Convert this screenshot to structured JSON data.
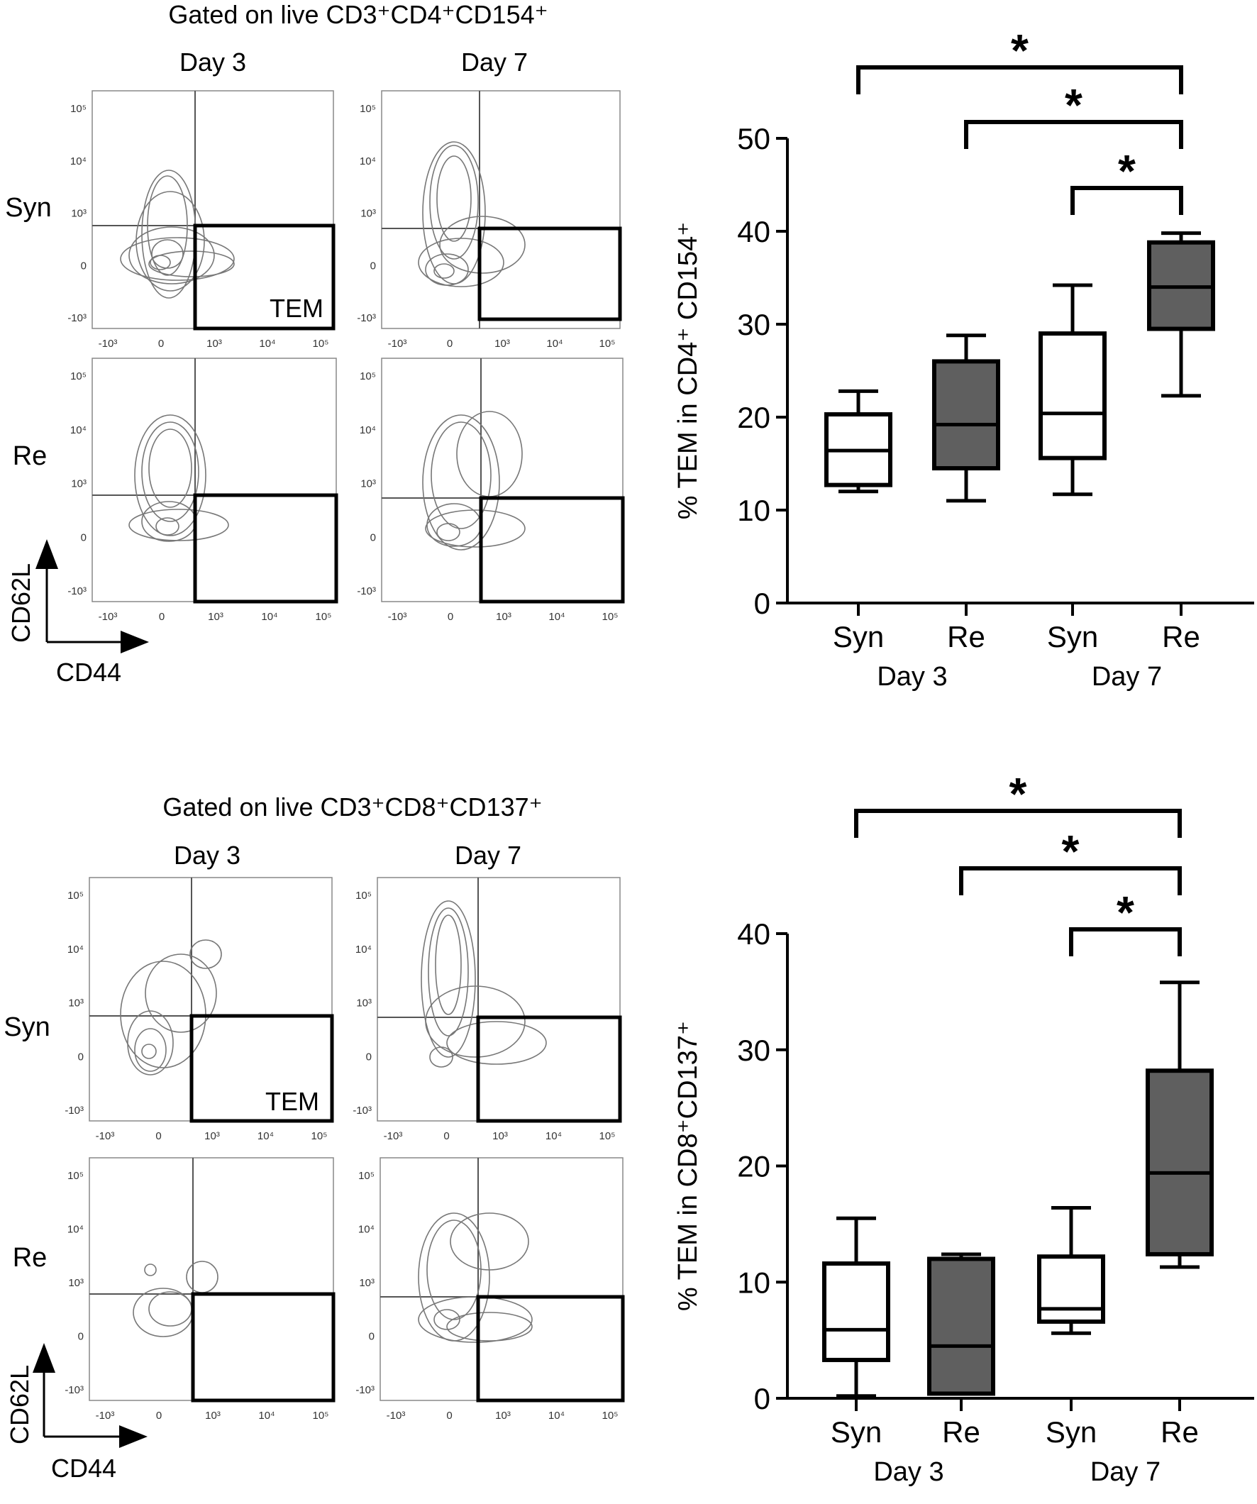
{
  "panels": [
    {
      "gating_title": "Gated on live CD3⁺CD4⁺CD154⁺",
      "columns": [
        "Day 3",
        "Day 7"
      ],
      "rows": [
        "Syn",
        "Re"
      ],
      "gate_label": "TEM",
      "axis_arrows": {
        "y": "CD62L",
        "x": "CD44"
      },
      "flow_ticks": {
        "y": [
          "10⁵",
          "10⁴",
          "10³",
          "0",
          "-10³"
        ],
        "x": [
          "-10³",
          "0",
          "10³",
          "10⁴",
          "10⁵"
        ]
      }
    },
    {
      "gating_title": "Gated on live CD3⁺CD8⁺CD137⁺",
      "columns": [
        "Day 3",
        "Day 7"
      ],
      "rows": [
        "Syn",
        "Re"
      ],
      "gate_label": "TEM",
      "axis_arrows": {
        "y": "CD62L",
        "x": "CD44"
      },
      "flow_ticks": {
        "y": [
          "10⁵",
          "10⁴",
          "10³",
          "0",
          "-10³"
        ],
        "x": [
          "-10³",
          "0",
          "10³",
          "10⁴",
          "10⁵"
        ]
      }
    }
  ],
  "chart_data": [
    {
      "type": "box",
      "ylabel": "% TEM in CD4⁺ CD154⁺",
      "ylim": [
        0,
        50
      ],
      "yticks": [
        0,
        10,
        20,
        30,
        40,
        50
      ],
      "categories": [
        "Syn",
        "Re",
        "Syn",
        "Re"
      ],
      "groups": [
        {
          "label": "Day 3",
          "span": [
            0,
            1
          ]
        },
        {
          "label": "Day 7",
          "span": [
            2,
            3
          ]
        }
      ],
      "boxes": [
        {
          "min": 12.0,
          "q1": 12.7,
          "median": 16.4,
          "q3": 20.3,
          "max": 22.8,
          "fill": "#ffffff"
        },
        {
          "min": 11.0,
          "q1": 14.5,
          "median": 19.2,
          "q3": 26.0,
          "max": 28.8,
          "fill": "#5f5f5f"
        },
        {
          "min": 11.7,
          "q1": 15.6,
          "median": 20.4,
          "q3": 29.0,
          "max": 34.2,
          "fill": "#ffffff"
        },
        {
          "min": 22.3,
          "q1": 29.5,
          "median": 34.0,
          "q3": 38.8,
          "max": 39.8,
          "fill": "#5f5f5f"
        }
      ],
      "significance": [
        {
          "from": 0,
          "to": 3,
          "label": "*"
        },
        {
          "from": 1,
          "to": 3,
          "label": "*"
        },
        {
          "from": 2,
          "to": 3,
          "label": "*"
        }
      ]
    },
    {
      "type": "box",
      "ylabel": "% TEM in CD8⁺CD137⁺",
      "ylim": [
        0,
        40
      ],
      "yticks": [
        0,
        10,
        20,
        30,
        40
      ],
      "categories": [
        "Syn",
        "Re",
        "Syn",
        "Re"
      ],
      "groups": [
        {
          "label": "Day 3",
          "span": [
            0,
            1
          ]
        },
        {
          "label": "Day 7",
          "span": [
            2,
            3
          ]
        }
      ],
      "boxes": [
        {
          "min": 0.2,
          "q1": 3.3,
          "median": 5.9,
          "q3": 11.6,
          "max": 15.5,
          "fill": "#ffffff"
        },
        {
          "min": 0.4,
          "q1": 0.4,
          "median": 4.5,
          "q3": 12.0,
          "max": 12.4,
          "fill": "#5f5f5f"
        },
        {
          "min": 5.6,
          "q1": 6.6,
          "median": 7.7,
          "q3": 12.2,
          "max": 16.4,
          "fill": "#ffffff"
        },
        {
          "min": 11.3,
          "q1": 12.4,
          "median": 19.4,
          "q3": 28.2,
          "max": 35.8,
          "fill": "#5f5f5f"
        }
      ],
      "significance": [
        {
          "from": 0,
          "to": 3,
          "label": "*"
        },
        {
          "from": 1,
          "to": 3,
          "label": "*"
        },
        {
          "from": 2,
          "to": 3,
          "label": "*"
        }
      ]
    }
  ]
}
